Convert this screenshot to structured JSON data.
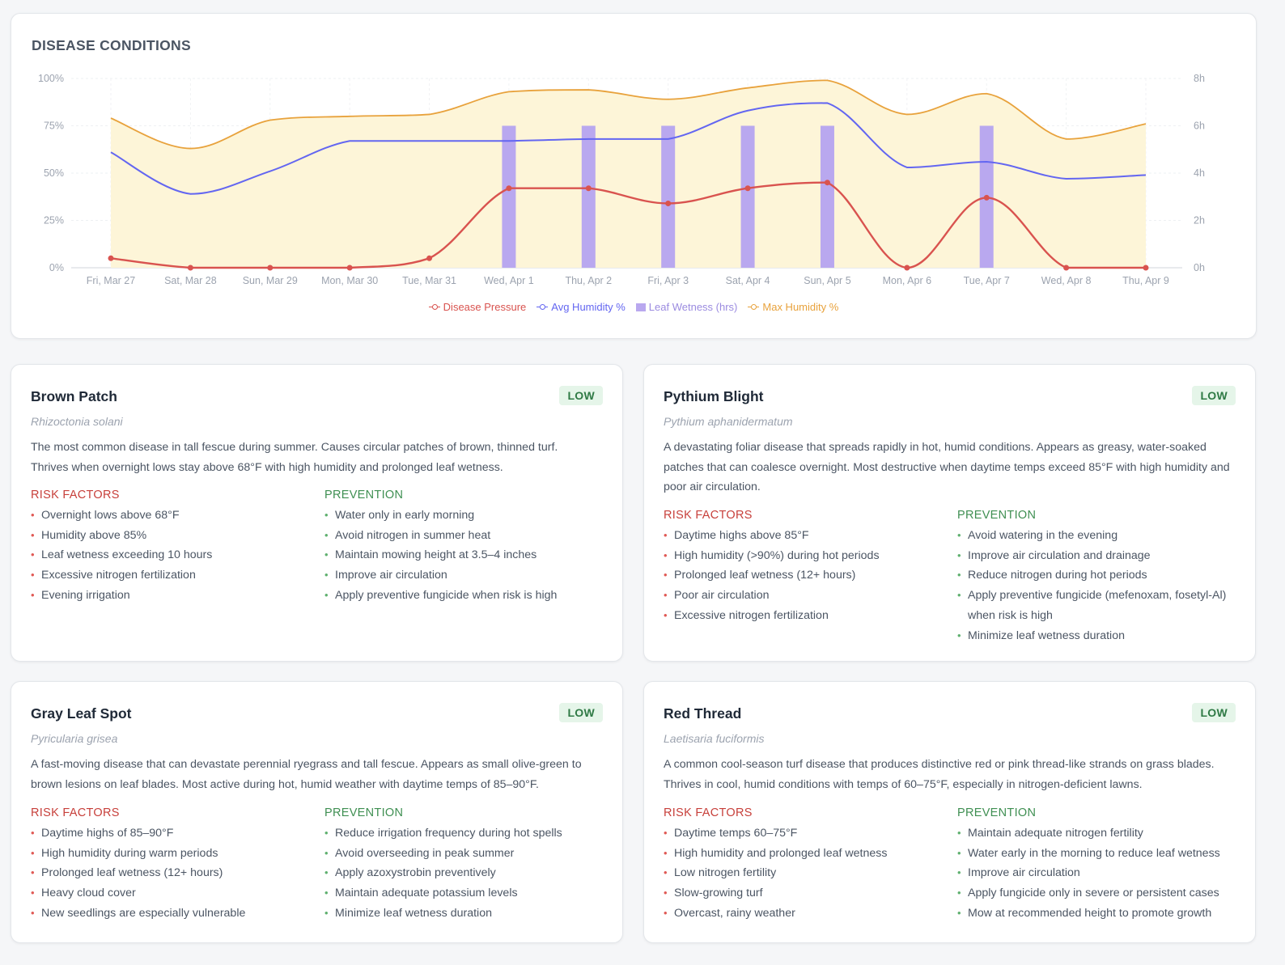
{
  "chart_title": "DISEASE CONDITIONS",
  "colors": {
    "disease_pressure": "#d9534f",
    "avg_humidity": "#6366f1",
    "leaf_wetness": "#b9a8ef",
    "max_humidity": "#e8a23c",
    "max_humidity_fill": "#fdf5d8",
    "low_badge_bg": "#e5f5e9",
    "low_badge_text": "#2f7a45",
    "risk_heading": "#c73f3a",
    "prevention_heading": "#3f8f52"
  },
  "chart_data": {
    "type": "line",
    "x": [
      "Fri, Mar 27",
      "Sat, Mar 28",
      "Sun, Mar 29",
      "Mon, Mar 30",
      "Tue, Mar 31",
      "Wed, Apr 1",
      "Thu, Apr 2",
      "Fri, Apr 3",
      "Sat, Apr 4",
      "Sun, Apr 5",
      "Mon, Apr 6",
      "Tue, Apr 7",
      "Wed, Apr 8",
      "Thu, Apr 9"
    ],
    "y_left": {
      "ticks": [
        "0%",
        "25%",
        "50%",
        "75%",
        "100%"
      ],
      "range": [
        0,
        100
      ]
    },
    "y_right": {
      "ticks": [
        "0h",
        "2h",
        "4h",
        "6h",
        "8h"
      ],
      "range": [
        0,
        8
      ]
    },
    "grid": true,
    "legend_position": "bottom-center",
    "series": [
      {
        "name": "Disease Pressure",
        "type": "line",
        "axis": "left",
        "markers": true,
        "values": [
          5,
          0,
          0,
          0,
          5,
          42,
          42,
          34,
          42,
          45,
          0,
          37,
          0,
          0
        ]
      },
      {
        "name": "Avg Humidity %",
        "type": "line",
        "axis": "left",
        "markers": false,
        "values": [
          61,
          39,
          51,
          67,
          67,
          67,
          68,
          68,
          83,
          87,
          53,
          56,
          47,
          49
        ]
      },
      {
        "name": "Leaf Wetness (hrs)",
        "type": "bar",
        "axis": "right",
        "values": [
          0,
          0,
          0,
          0,
          0,
          6,
          6,
          6,
          6,
          6,
          0,
          6,
          0,
          0
        ]
      },
      {
        "name": "Max Humidity %",
        "type": "area",
        "axis": "left",
        "markers": false,
        "values": [
          79,
          63,
          78,
          80,
          81,
          93,
          94,
          89,
          95,
          99,
          81,
          92,
          68,
          76
        ]
      }
    ]
  },
  "labels": {
    "risk": "RISK FACTORS",
    "prevention": "PREVENTION"
  },
  "diseases": [
    {
      "name": "Brown Patch",
      "level": "LOW",
      "scientific": "Rhizoctonia solani",
      "description": "The most common disease in tall fescue during summer. Causes circular patches of brown, thinned turf. Thrives when overnight lows stay above 68°F with high humidity and prolonged leaf wetness.",
      "risk_factors": [
        "Overnight lows above 68°F",
        "Humidity above 85%",
        "Leaf wetness exceeding 10 hours",
        "Excessive nitrogen fertilization",
        "Evening irrigation"
      ],
      "prevention": [
        "Water only in early morning",
        "Avoid nitrogen in summer heat",
        "Maintain mowing height at 3.5–4 inches",
        "Improve air circulation",
        "Apply preventive fungicide when risk is high"
      ]
    },
    {
      "name": "Pythium Blight",
      "level": "LOW",
      "scientific": "Pythium aphanidermatum",
      "description": "A devastating foliar disease that spreads rapidly in hot, humid conditions. Appears as greasy, water-soaked patches that can coalesce overnight. Most destructive when daytime temps exceed 85°F with high humidity and poor air circulation.",
      "risk_factors": [
        "Daytime highs above 85°F",
        "High humidity (>90%) during hot periods",
        "Prolonged leaf wetness (12+ hours)",
        "Poor air circulation",
        "Excessive nitrogen fertilization"
      ],
      "prevention": [
        "Avoid watering in the evening",
        "Improve air circulation and drainage",
        "Reduce nitrogen during hot periods",
        "Apply preventive fungicide (mefenoxam, fosetyl-Al) when risk is high",
        "Minimize leaf wetness duration"
      ]
    },
    {
      "name": "Gray Leaf Spot",
      "level": "LOW",
      "scientific": "Pyricularia grisea",
      "description": "A fast-moving disease that can devastate perennial ryegrass and tall fescue. Appears as small olive-green to brown lesions on leaf blades. Most active during hot, humid weather with daytime temps of 85–90°F.",
      "risk_factors": [
        "Daytime highs of 85–90°F",
        "High humidity during warm periods",
        "Prolonged leaf wetness (12+ hours)",
        "Heavy cloud cover",
        "New seedlings are especially vulnerable"
      ],
      "prevention": [
        "Reduce irrigation frequency during hot spells",
        "Avoid overseeding in peak summer",
        "Apply azoxystrobin preventively",
        "Maintain adequate potassium levels",
        "Minimize leaf wetness duration"
      ]
    },
    {
      "name": "Red Thread",
      "level": "LOW",
      "scientific": "Laetisaria fuciformis",
      "description": "A common cool-season turf disease that produces distinctive red or pink thread-like strands on grass blades. Thrives in cool, humid conditions with temps of 60–75°F, especially in nitrogen-deficient lawns.",
      "risk_factors": [
        "Daytime temps 60–75°F",
        "High humidity and prolonged leaf wetness",
        "Low nitrogen fertility",
        "Slow-growing turf",
        "Overcast, rainy weather"
      ],
      "prevention": [
        "Maintain adequate nitrogen fertility",
        "Water early in the morning to reduce leaf wetness",
        "Improve air circulation",
        "Apply fungicide only in severe or persistent cases",
        "Mow at recommended height to promote growth"
      ]
    }
  ]
}
